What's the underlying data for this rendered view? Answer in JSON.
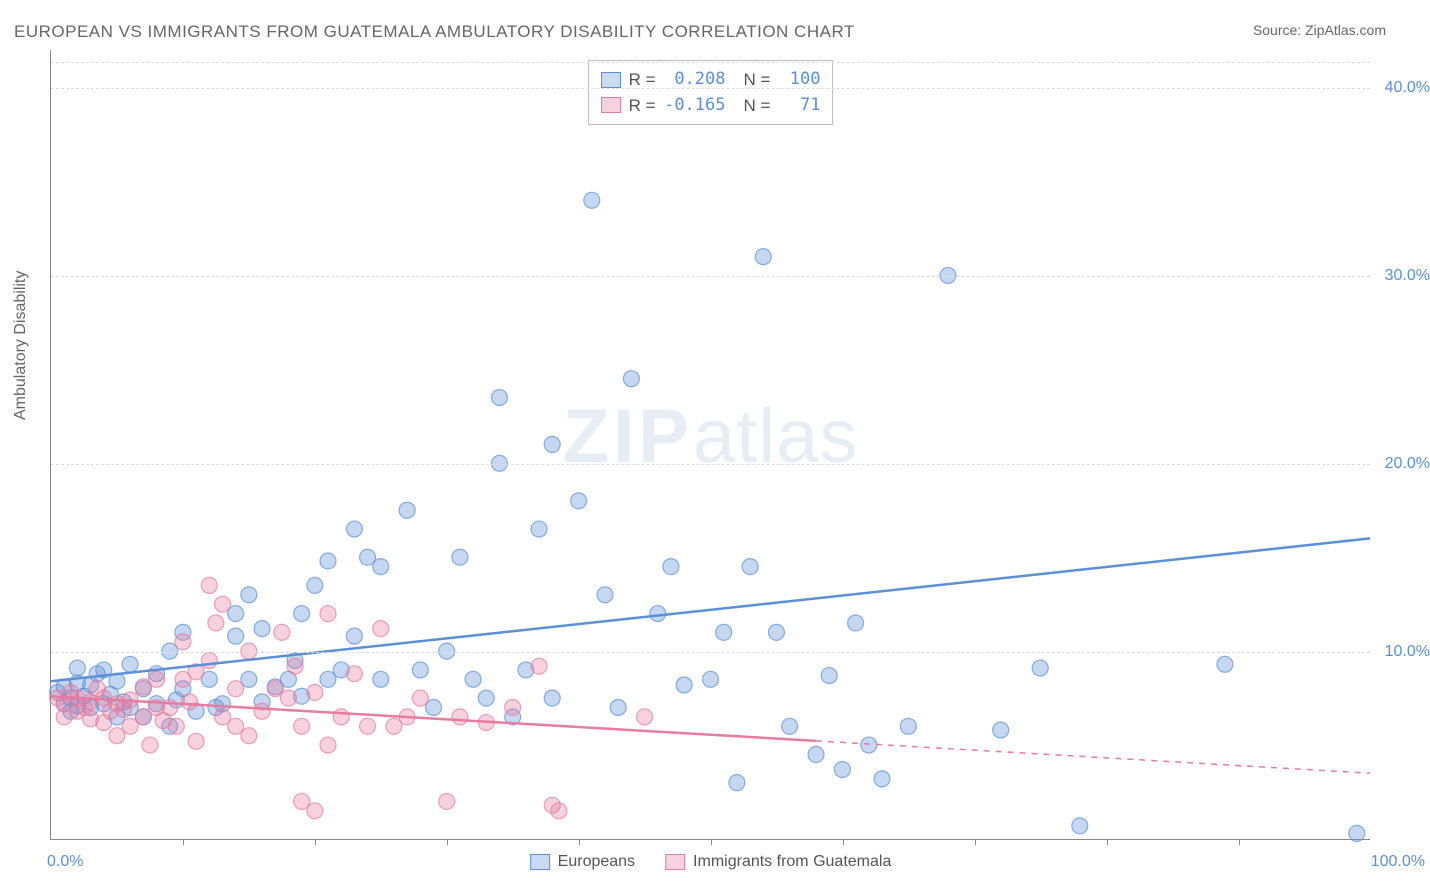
{
  "title": "EUROPEAN VS IMMIGRANTS FROM GUATEMALA AMBULATORY DISABILITY CORRELATION CHART",
  "source": "Source: ZipAtlas.com",
  "y_axis_label": "Ambulatory Disability",
  "watermark": {
    "bold": "ZIP",
    "rest": "atlas"
  },
  "chart": {
    "type": "scatter",
    "xlim": [
      0,
      100
    ],
    "ylim": [
      0,
      42
    ],
    "x_ticks_minor": [
      10,
      20,
      30,
      40,
      50,
      60,
      70,
      80,
      90
    ],
    "x_tick_labels": [
      {
        "value": 0,
        "label": "0.0%"
      },
      {
        "value": 100,
        "label": "100.0%"
      }
    ],
    "y_ticks": [
      {
        "value": 10,
        "label": "10.0%"
      },
      {
        "value": 20,
        "label": "20.0%"
      },
      {
        "value": 30,
        "label": "30.0%"
      },
      {
        "value": 40,
        "label": "40.0%"
      }
    ],
    "grid_color": "#dddddd",
    "marker_radius": 8,
    "marker_fill_opacity": 0.35,
    "marker_stroke_opacity": 0.7,
    "marker_stroke_width": 1.2,
    "trend_line_width": 2.5,
    "series": [
      {
        "name": "Europeans",
        "color": "#5b8fd6",
        "swatch_fill": "#c9dbf2",
        "swatch_border": "#5b8fd6",
        "stats": {
          "R": "0.208",
          "N": "100"
        },
        "trend": {
          "x0": 0,
          "y0": 8.4,
          "x1": 100,
          "y1": 16.0,
          "solid_until_x": 100
        },
        "points": [
          [
            0.5,
            7.8
          ],
          [
            1,
            7.2
          ],
          [
            1,
            8.1
          ],
          [
            1.5,
            7.5
          ],
          [
            1.5,
            6.8
          ],
          [
            2,
            8.3
          ],
          [
            2,
            7.1
          ],
          [
            2,
            9.1
          ],
          [
            2.5,
            7.6
          ],
          [
            3,
            7.0
          ],
          [
            3,
            8.2
          ],
          [
            3.5,
            8.8
          ],
          [
            4,
            7.2
          ],
          [
            4,
            9.0
          ],
          [
            4.5,
            7.7
          ],
          [
            5,
            8.4
          ],
          [
            5,
            6.5
          ],
          [
            5.5,
            7.3
          ],
          [
            6,
            9.3
          ],
          [
            6,
            7.0
          ],
          [
            7,
            6.5
          ],
          [
            7,
            8.0
          ],
          [
            8,
            8.8
          ],
          [
            8,
            7.2
          ],
          [
            9,
            6.0
          ],
          [
            9,
            10.0
          ],
          [
            9.5,
            7.4
          ],
          [
            10,
            11.0
          ],
          [
            10,
            8.0
          ],
          [
            11,
            6.8
          ],
          [
            12,
            8.5
          ],
          [
            12.5,
            7.0
          ],
          [
            13,
            7.2
          ],
          [
            14,
            10.8
          ],
          [
            14,
            12.0
          ],
          [
            15,
            8.5
          ],
          [
            15,
            13.0
          ],
          [
            16,
            7.3
          ],
          [
            16,
            11.2
          ],
          [
            17,
            8.1
          ],
          [
            18,
            8.5
          ],
          [
            18.5,
            9.5
          ],
          [
            19,
            7.6
          ],
          [
            19,
            12.0
          ],
          [
            20,
            13.5
          ],
          [
            21,
            14.8
          ],
          [
            21,
            8.5
          ],
          [
            22,
            9.0
          ],
          [
            23,
            10.8
          ],
          [
            23,
            16.5
          ],
          [
            24,
            15.0
          ],
          [
            25,
            8.5
          ],
          [
            25,
            14.5
          ],
          [
            27,
            17.5
          ],
          [
            28,
            9.0
          ],
          [
            29,
            7.0
          ],
          [
            30,
            10.0
          ],
          [
            31,
            15.0
          ],
          [
            32,
            8.5
          ],
          [
            33,
            7.5
          ],
          [
            34,
            23.5
          ],
          [
            34,
            20.0
          ],
          [
            35,
            6.5
          ],
          [
            36,
            9.0
          ],
          [
            37,
            16.5
          ],
          [
            38,
            21.0
          ],
          [
            38,
            7.5
          ],
          [
            40,
            18.0
          ],
          [
            41,
            34.0
          ],
          [
            42,
            13.0
          ],
          [
            43,
            7.0
          ],
          [
            44,
            24.5
          ],
          [
            46,
            12.0
          ],
          [
            47,
            14.5
          ],
          [
            48,
            8.2
          ],
          [
            50,
            8.5
          ],
          [
            51,
            11.0
          ],
          [
            52,
            3.0
          ],
          [
            53,
            14.5
          ],
          [
            54,
            31.0
          ],
          [
            55,
            11.0
          ],
          [
            56,
            6.0
          ],
          [
            58,
            4.5
          ],
          [
            59,
            8.7
          ],
          [
            60,
            3.7
          ],
          [
            61,
            11.5
          ],
          [
            62,
            5.0
          ],
          [
            63,
            3.2
          ],
          [
            65,
            6.0
          ],
          [
            68,
            30.0
          ],
          [
            72,
            5.8
          ],
          [
            75,
            9.1
          ],
          [
            78,
            0.7
          ],
          [
            89,
            9.3
          ],
          [
            99,
            0.3
          ]
        ]
      },
      {
        "name": "Immigrants from Guatemala",
        "color": "#e77ba0",
        "swatch_fill": "#f7d2de",
        "swatch_border": "#e77ba0",
        "stats": {
          "R": "-0.165",
          "N": "71"
        },
        "trend": {
          "x0": 0,
          "y0": 7.6,
          "x1": 100,
          "y1": 3.5,
          "solid_until_x": 58
        },
        "points": [
          [
            0.5,
            7.5
          ],
          [
            1,
            7.2
          ],
          [
            1,
            6.5
          ],
          [
            1.5,
            7.8
          ],
          [
            2,
            6.8
          ],
          [
            2,
            7.5
          ],
          [
            2.5,
            7.0
          ],
          [
            3,
            7.3
          ],
          [
            3,
            6.4
          ],
          [
            3.5,
            8.0
          ],
          [
            4,
            6.2
          ],
          [
            4,
            7.5
          ],
          [
            4.5,
            6.8
          ],
          [
            5,
            7.2
          ],
          [
            5,
            5.5
          ],
          [
            5.5,
            6.9
          ],
          [
            6,
            6.0
          ],
          [
            6,
            7.4
          ],
          [
            7,
            8.1
          ],
          [
            7,
            6.5
          ],
          [
            7.5,
            5.0
          ],
          [
            8,
            7.0
          ],
          [
            8,
            8.5
          ],
          [
            8.5,
            6.3
          ],
          [
            9,
            7.0
          ],
          [
            9.5,
            6.0
          ],
          [
            10,
            10.5
          ],
          [
            10,
            8.5
          ],
          [
            10.5,
            7.3
          ],
          [
            11,
            8.9
          ],
          [
            11,
            5.2
          ],
          [
            12,
            13.5
          ],
          [
            12,
            9.5
          ],
          [
            12.5,
            11.5
          ],
          [
            13,
            6.5
          ],
          [
            13,
            12.5
          ],
          [
            14,
            8.0
          ],
          [
            14,
            6.0
          ],
          [
            15,
            5.5
          ],
          [
            15,
            10.0
          ],
          [
            16,
            6.8
          ],
          [
            17,
            8.0
          ],
          [
            17.5,
            11.0
          ],
          [
            18,
            7.5
          ],
          [
            18.5,
            9.2
          ],
          [
            19,
            2.0
          ],
          [
            19,
            6.0
          ],
          [
            20,
            1.5
          ],
          [
            20,
            7.8
          ],
          [
            21,
            5.0
          ],
          [
            21,
            12.0
          ],
          [
            22,
            6.5
          ],
          [
            23,
            8.8
          ],
          [
            24,
            6.0
          ],
          [
            25,
            11.2
          ],
          [
            26,
            6.0
          ],
          [
            27,
            6.5
          ],
          [
            28,
            7.5
          ],
          [
            30,
            2.0
          ],
          [
            31,
            6.5
          ],
          [
            33,
            6.2
          ],
          [
            35,
            7.0
          ],
          [
            37,
            9.2
          ],
          [
            38,
            1.8
          ],
          [
            38.5,
            1.5
          ],
          [
            45,
            6.5
          ]
        ]
      }
    ]
  },
  "stats_labels": {
    "R": "R =",
    "N": "N ="
  },
  "legend": {
    "items": [
      {
        "label": "Europeans",
        "series": 0
      },
      {
        "label": "Immigrants from Guatemala",
        "series": 1
      }
    ]
  }
}
